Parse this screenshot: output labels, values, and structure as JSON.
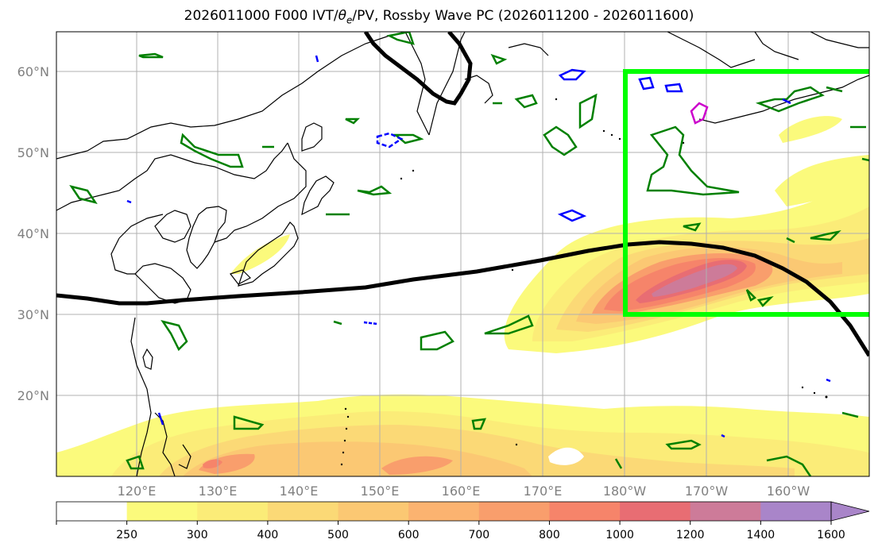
{
  "title": {
    "prefix": "2026011000 F000 IVT/",
    "theta": "θ",
    "theta_sub": "e",
    "suffix": "/PV, Rossby Wave PC (2026011200 - 2026011600)"
  },
  "lat_labels": [
    "60°N",
    "50°N",
    "40°N",
    "30°N",
    "20°N"
  ],
  "lon_labels": [
    "120°E",
    "130°E",
    "140°E",
    "150°E",
    "160°E",
    "170°E",
    "180°W",
    "170°W",
    "160°W"
  ],
  "colorbar": {
    "ticks": [
      "250",
      "300",
      "400",
      "500",
      "600",
      "700",
      "800",
      "1000",
      "1200",
      "1400",
      "1600"
    ],
    "colors": [
      "#ffffff",
      "#fbfa7c",
      "#fbec78",
      "#fbd976",
      "#fbc873",
      "#fbb370",
      "#f99e6c",
      "#f6846a",
      "#e86d73",
      "#cd7b99",
      "#a985c9"
    ]
  },
  "colors": {
    "outline_box": "#00ff00",
    "jet_contour": "#000000",
    "theta_contour": "#008000",
    "pv_contour": "#0000ff",
    "pv_high_contour": "#cc00cc"
  }
}
